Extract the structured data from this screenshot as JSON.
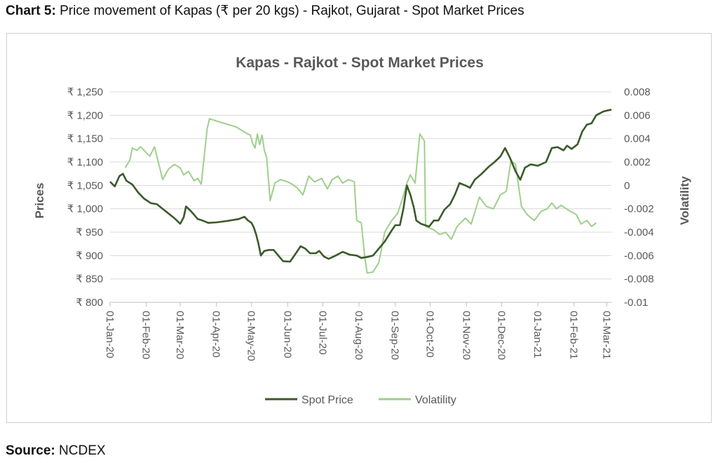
{
  "caption": {
    "prefix": "Chart 5:",
    "text": " Price movement of Kapas (₹ per 20 kgs) - Rajkot, Gujarat - Spot Market Prices"
  },
  "source": {
    "prefix": "Source:",
    "text": " NCDEX"
  },
  "colors": {
    "spot": "#3b5a2a",
    "volatility": "#9fcf8c",
    "grid": "#d9d9d9",
    "axis_text": "#595959"
  },
  "chart_data": {
    "type": "line",
    "title": "Kapas - Rajkot - Spot Market Prices",
    "ylabel": "Prices",
    "y2label": "Volatility",
    "ylim": [
      800,
      1250
    ],
    "y2lim": [
      -0.01,
      0.008
    ],
    "yticks": [
      "₹ 800",
      "₹ 850",
      "₹ 900",
      "₹ 950",
      "₹ 1,000",
      "₹ 1,050",
      "₹ 1,100",
      "₹ 1,150",
      "₹ 1,200",
      "₹ 1,250"
    ],
    "yticks_values": [
      800,
      850,
      900,
      950,
      1000,
      1050,
      1100,
      1150,
      1200,
      1250
    ],
    "y2ticks": [
      "-0.01",
      "-0.008",
      "-0.006",
      "-0.004",
      "-0.002",
      "0",
      "0.002",
      "0.004",
      "0.006",
      "0.008"
    ],
    "y2ticks_values": [
      -0.01,
      -0.008,
      -0.006,
      -0.004,
      -0.002,
      0,
      0.002,
      0.004,
      0.006,
      0.008
    ],
    "x_range": [
      "2020-01-01",
      "2021-03-05"
    ],
    "xticks": [
      {
        "date": "2020-01-01",
        "label": "01-Jan-20"
      },
      {
        "date": "2020-02-01",
        "label": "01-Feb-20"
      },
      {
        "date": "2020-03-01",
        "label": "01-Mar-20"
      },
      {
        "date": "2020-04-01",
        "label": "01-Apr-20"
      },
      {
        "date": "2020-05-01",
        "label": "01-May-20"
      },
      {
        "date": "2020-06-01",
        "label": "01-Jun-20"
      },
      {
        "date": "2020-07-01",
        "label": "01-Jul-20"
      },
      {
        "date": "2020-08-01",
        "label": "01-Aug-20"
      },
      {
        "date": "2020-09-01",
        "label": "01-Sep-20"
      },
      {
        "date": "2020-10-01",
        "label": "01-Oct-20"
      },
      {
        "date": "2020-11-01",
        "label": "01-Nov-20"
      },
      {
        "date": "2020-12-01",
        "label": "01-Dec-20"
      },
      {
        "date": "2021-01-01",
        "label": "01-Jan-21"
      },
      {
        "date": "2021-02-01",
        "label": "01-Feb-21"
      },
      {
        "date": "2021-03-01",
        "label": "01-Mar-21"
      }
    ],
    "grid": true,
    "legend": "bottom",
    "series": [
      {
        "name": "Spot Price",
        "axis": "left",
        "points": [
          [
            "2020-01-01",
            1058
          ],
          [
            "2020-01-05",
            1048
          ],
          [
            "2020-01-09",
            1070
          ],
          [
            "2020-01-12",
            1075
          ],
          [
            "2020-01-15",
            1060
          ],
          [
            "2020-01-20",
            1052
          ],
          [
            "2020-01-25",
            1035
          ],
          [
            "2020-01-30",
            1022
          ],
          [
            "2020-02-05",
            1012
          ],
          [
            "2020-02-10",
            1010
          ],
          [
            "2020-02-15",
            1000
          ],
          [
            "2020-02-20",
            990
          ],
          [
            "2020-02-25",
            980
          ],
          [
            "2020-03-01",
            968
          ],
          [
            "2020-03-04",
            982
          ],
          [
            "2020-03-06",
            1005
          ],
          [
            "2020-03-09",
            998
          ],
          [
            "2020-03-12",
            990
          ],
          [
            "2020-03-16",
            978
          ],
          [
            "2020-03-20",
            975
          ],
          [
            "2020-03-25",
            970
          ],
          [
            "2020-04-01",
            971
          ],
          [
            "2020-04-10",
            974
          ],
          [
            "2020-04-20",
            978
          ],
          [
            "2020-04-25",
            983
          ],
          [
            "2020-04-28",
            975
          ],
          [
            "2020-05-01",
            970
          ],
          [
            "2020-05-03",
            960
          ],
          [
            "2020-05-05",
            945
          ],
          [
            "2020-05-07",
            925
          ],
          [
            "2020-05-09",
            900
          ],
          [
            "2020-05-12",
            910
          ],
          [
            "2020-05-16",
            912
          ],
          [
            "2020-05-20",
            912
          ],
          [
            "2020-05-24",
            900
          ],
          [
            "2020-05-28",
            888
          ],
          [
            "2020-06-03",
            887
          ],
          [
            "2020-06-08",
            905
          ],
          [
            "2020-06-12",
            920
          ],
          [
            "2020-06-16",
            915
          ],
          [
            "2020-06-20",
            905
          ],
          [
            "2020-06-25",
            905
          ],
          [
            "2020-06-28",
            910
          ],
          [
            "2020-07-02",
            898
          ],
          [
            "2020-07-06",
            893
          ],
          [
            "2020-07-12",
            900
          ],
          [
            "2020-07-18",
            908
          ],
          [
            "2020-07-24",
            902
          ],
          [
            "2020-07-30",
            900
          ],
          [
            "2020-08-03",
            895
          ],
          [
            "2020-08-08",
            897
          ],
          [
            "2020-08-13",
            900
          ],
          [
            "2020-08-18",
            915
          ],
          [
            "2020-08-23",
            930
          ],
          [
            "2020-08-28",
            950
          ],
          [
            "2020-09-01",
            965
          ],
          [
            "2020-09-05",
            965
          ],
          [
            "2020-09-08",
            1000
          ],
          [
            "2020-09-11",
            1050
          ],
          [
            "2020-09-14",
            1030
          ],
          [
            "2020-09-17",
            1002
          ],
          [
            "2020-09-19",
            975
          ],
          [
            "2020-09-23",
            968
          ],
          [
            "2020-09-30",
            962
          ],
          [
            "2020-10-04",
            975
          ],
          [
            "2020-10-08",
            975
          ],
          [
            "2020-10-13",
            998
          ],
          [
            "2020-10-18",
            1010
          ],
          [
            "2020-10-22",
            1030
          ],
          [
            "2020-10-26",
            1055
          ],
          [
            "2020-10-31",
            1050
          ],
          [
            "2020-11-04",
            1045
          ],
          [
            "2020-11-08",
            1062
          ],
          [
            "2020-11-14",
            1075
          ],
          [
            "2020-11-20",
            1090
          ],
          [
            "2020-11-25",
            1100
          ],
          [
            "2020-11-30",
            1112
          ],
          [
            "2020-12-04",
            1130
          ],
          [
            "2020-12-08",
            1110
          ],
          [
            "2020-12-13",
            1080
          ],
          [
            "2020-12-17",
            1062
          ],
          [
            "2020-12-21",
            1088
          ],
          [
            "2020-12-26",
            1095
          ],
          [
            "2021-01-01",
            1092
          ],
          [
            "2021-01-08",
            1100
          ],
          [
            "2021-01-13",
            1130
          ],
          [
            "2021-01-18",
            1132
          ],
          [
            "2021-01-23",
            1125
          ],
          [
            "2021-01-26",
            1135
          ],
          [
            "2021-01-30",
            1128
          ],
          [
            "2021-02-04",
            1138
          ],
          [
            "2021-02-08",
            1165
          ],
          [
            "2021-02-12",
            1180
          ],
          [
            "2021-02-16",
            1183
          ],
          [
            "2021-02-20",
            1200
          ],
          [
            "2021-02-23",
            1204
          ],
          [
            "2021-02-26",
            1208
          ],
          [
            "2021-03-01",
            1210
          ],
          [
            "2021-03-05",
            1212
          ]
        ]
      },
      {
        "name": "Volatility",
        "axis": "right",
        "points": [
          [
            "2020-01-14",
            0.0015
          ],
          [
            "2020-01-18",
            0.0022
          ],
          [
            "2020-01-20",
            0.0032
          ],
          [
            "2020-01-24",
            0.003
          ],
          [
            "2020-01-27",
            0.0033
          ],
          [
            "2020-02-01",
            0.0028
          ],
          [
            "2020-02-04",
            0.0025
          ],
          [
            "2020-02-08",
            0.0033
          ],
          [
            "2020-02-11",
            0.0021
          ],
          [
            "2020-02-15",
            0.0005
          ],
          [
            "2020-02-20",
            0.0014
          ],
          [
            "2020-02-25",
            0.0018
          ],
          [
            "2020-03-01",
            0.0015
          ],
          [
            "2020-03-04",
            0.0009
          ],
          [
            "2020-03-08",
            0.0012
          ],
          [
            "2020-03-13",
            0.0004
          ],
          [
            "2020-03-16",
            0.0006
          ],
          [
            "2020-03-19",
            0.0001
          ],
          [
            "2020-03-24",
            0.0048
          ],
          [
            "2020-03-26",
            0.0057
          ],
          [
            "2020-04-08",
            0.0053
          ],
          [
            "2020-04-18",
            0.005
          ],
          [
            "2020-04-26",
            0.0045
          ],
          [
            "2020-04-30",
            0.0043
          ],
          [
            "2020-05-02",
            0.0036
          ],
          [
            "2020-05-04",
            0.0032
          ],
          [
            "2020-05-06",
            0.0044
          ],
          [
            "2020-05-08",
            0.0035
          ],
          [
            "2020-05-10",
            0.0043
          ],
          [
            "2020-05-12",
            0.003
          ],
          [
            "2020-05-14",
            0.0024
          ],
          [
            "2020-05-17",
            -0.0013
          ],
          [
            "2020-05-21",
            0.0002
          ],
          [
            "2020-05-26",
            0.0005
          ],
          [
            "2020-06-01",
            0.0003
          ],
          [
            "2020-06-05",
            0.0001
          ],
          [
            "2020-06-09",
            -0.0002
          ],
          [
            "2020-06-14",
            -0.0008
          ],
          [
            "2020-06-19",
            0.0008
          ],
          [
            "2020-06-24",
            0.0003
          ],
          [
            "2020-06-30",
            0.0006
          ],
          [
            "2020-07-05",
            -0.0003
          ],
          [
            "2020-07-09",
            0.0005
          ],
          [
            "2020-07-14",
            0.0008
          ],
          [
            "2020-07-18",
            0.0002
          ],
          [
            "2020-07-23",
            0.0005
          ],
          [
            "2020-07-28",
            0.0003
          ],
          [
            "2020-07-30",
            -0.003
          ],
          [
            "2020-08-03",
            -0.0032
          ],
          [
            "2020-08-06",
            -0.0062
          ],
          [
            "2020-08-08",
            -0.0075
          ],
          [
            "2020-08-13",
            -0.0074
          ],
          [
            "2020-08-18",
            -0.0066
          ],
          [
            "2020-08-23",
            -0.004
          ],
          [
            "2020-08-29",
            -0.003
          ],
          [
            "2020-09-03",
            -0.0024
          ],
          [
            "2020-09-07",
            -0.0012
          ],
          [
            "2020-09-11",
            0.0002
          ],
          [
            "2020-09-14",
            0.0009
          ],
          [
            "2020-09-18",
            0.0002
          ],
          [
            "2020-09-22",
            0.0044
          ],
          [
            "2020-09-26",
            0.0038
          ],
          [
            "2020-09-27",
            -0.0035
          ],
          [
            "2020-10-04",
            -0.0038
          ],
          [
            "2020-10-09",
            -0.0042
          ],
          [
            "2020-10-14",
            -0.004
          ],
          [
            "2020-10-19",
            -0.0046
          ],
          [
            "2020-10-24",
            -0.0035
          ],
          [
            "2020-10-31",
            -0.0028
          ],
          [
            "2020-11-05",
            -0.0033
          ],
          [
            "2020-11-12",
            -0.001
          ],
          [
            "2020-11-18",
            -0.0018
          ],
          [
            "2020-11-24",
            -0.002
          ],
          [
            "2020-11-30",
            -0.0008
          ],
          [
            "2020-12-05",
            -0.0005
          ],
          [
            "2020-12-09",
            0.0021
          ],
          [
            "2020-12-13",
            0.0018
          ],
          [
            "2020-12-18",
            -0.0018
          ],
          [
            "2020-12-23",
            -0.0025
          ],
          [
            "2020-12-29",
            -0.003
          ],
          [
            "2021-01-04",
            -0.0022
          ],
          [
            "2021-01-09",
            -0.002
          ],
          [
            "2021-01-13",
            -0.0015
          ],
          [
            "2021-01-17",
            -0.002
          ],
          [
            "2021-01-21",
            -0.0017
          ],
          [
            "2021-01-27",
            -0.0021
          ],
          [
            "2021-02-03",
            -0.0025
          ],
          [
            "2021-02-07",
            -0.0033
          ],
          [
            "2021-02-12",
            -0.003
          ],
          [
            "2021-02-16",
            -0.0035
          ],
          [
            "2021-02-20",
            -0.0032
          ]
        ]
      }
    ]
  }
}
